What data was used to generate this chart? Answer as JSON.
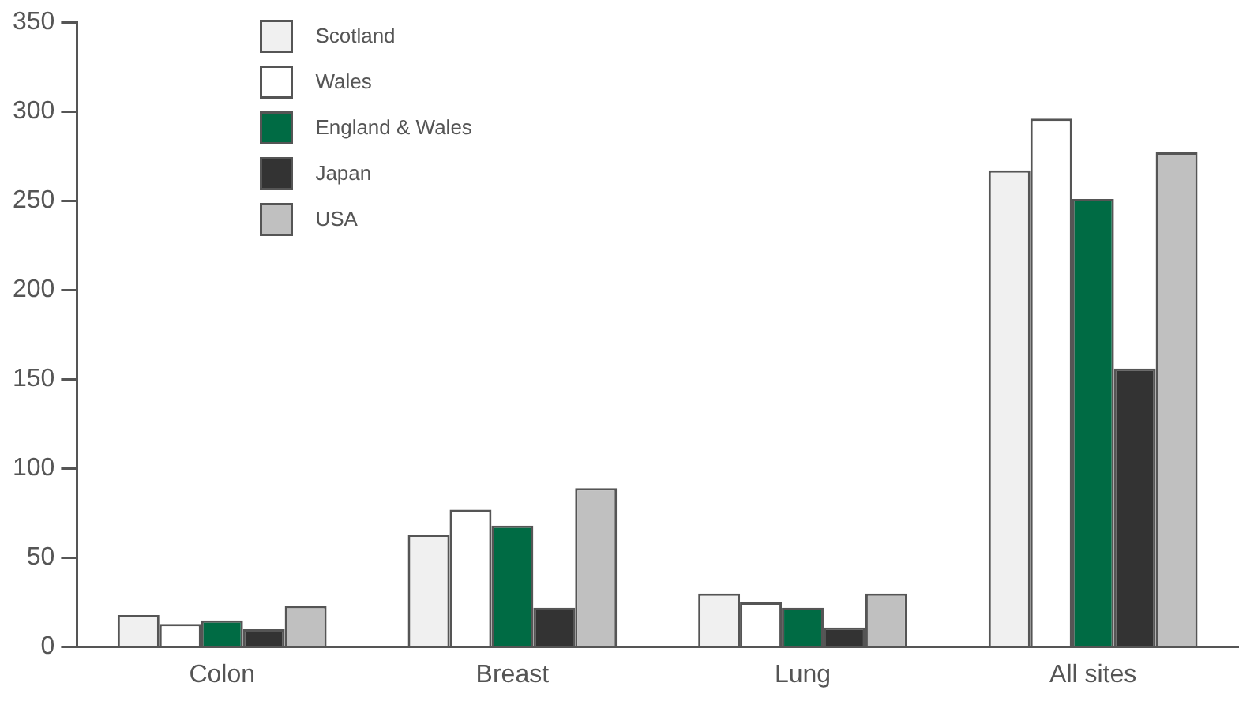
{
  "chart_data": {
    "type": "bar",
    "categories": [
      "Colon",
      "Breast",
      "Lung",
      "All sites"
    ],
    "series": [
      {
        "name": "Scotland",
        "color": "#f0f0f0",
        "values": [
          18,
          63,
          30,
          267
        ]
      },
      {
        "name": "Wales",
        "color": "#ffffff",
        "values": [
          13,
          77,
          25,
          296
        ]
      },
      {
        "name": "England & Wales",
        "color": "#006b44",
        "values": [
          15,
          68,
          22,
          251
        ]
      },
      {
        "name": "Japan",
        "color": "#333333",
        "values": [
          10,
          22,
          11,
          156
        ]
      },
      {
        "name": "USA",
        "color": "#c0c0c0",
        "values": [
          23,
          89,
          30,
          277
        ]
      }
    ],
    "ylim": [
      0,
      350
    ],
    "yticks": [
      0,
      50,
      100,
      150,
      200,
      250,
      300,
      350
    ],
    "grid": false,
    "legend": "top left"
  }
}
